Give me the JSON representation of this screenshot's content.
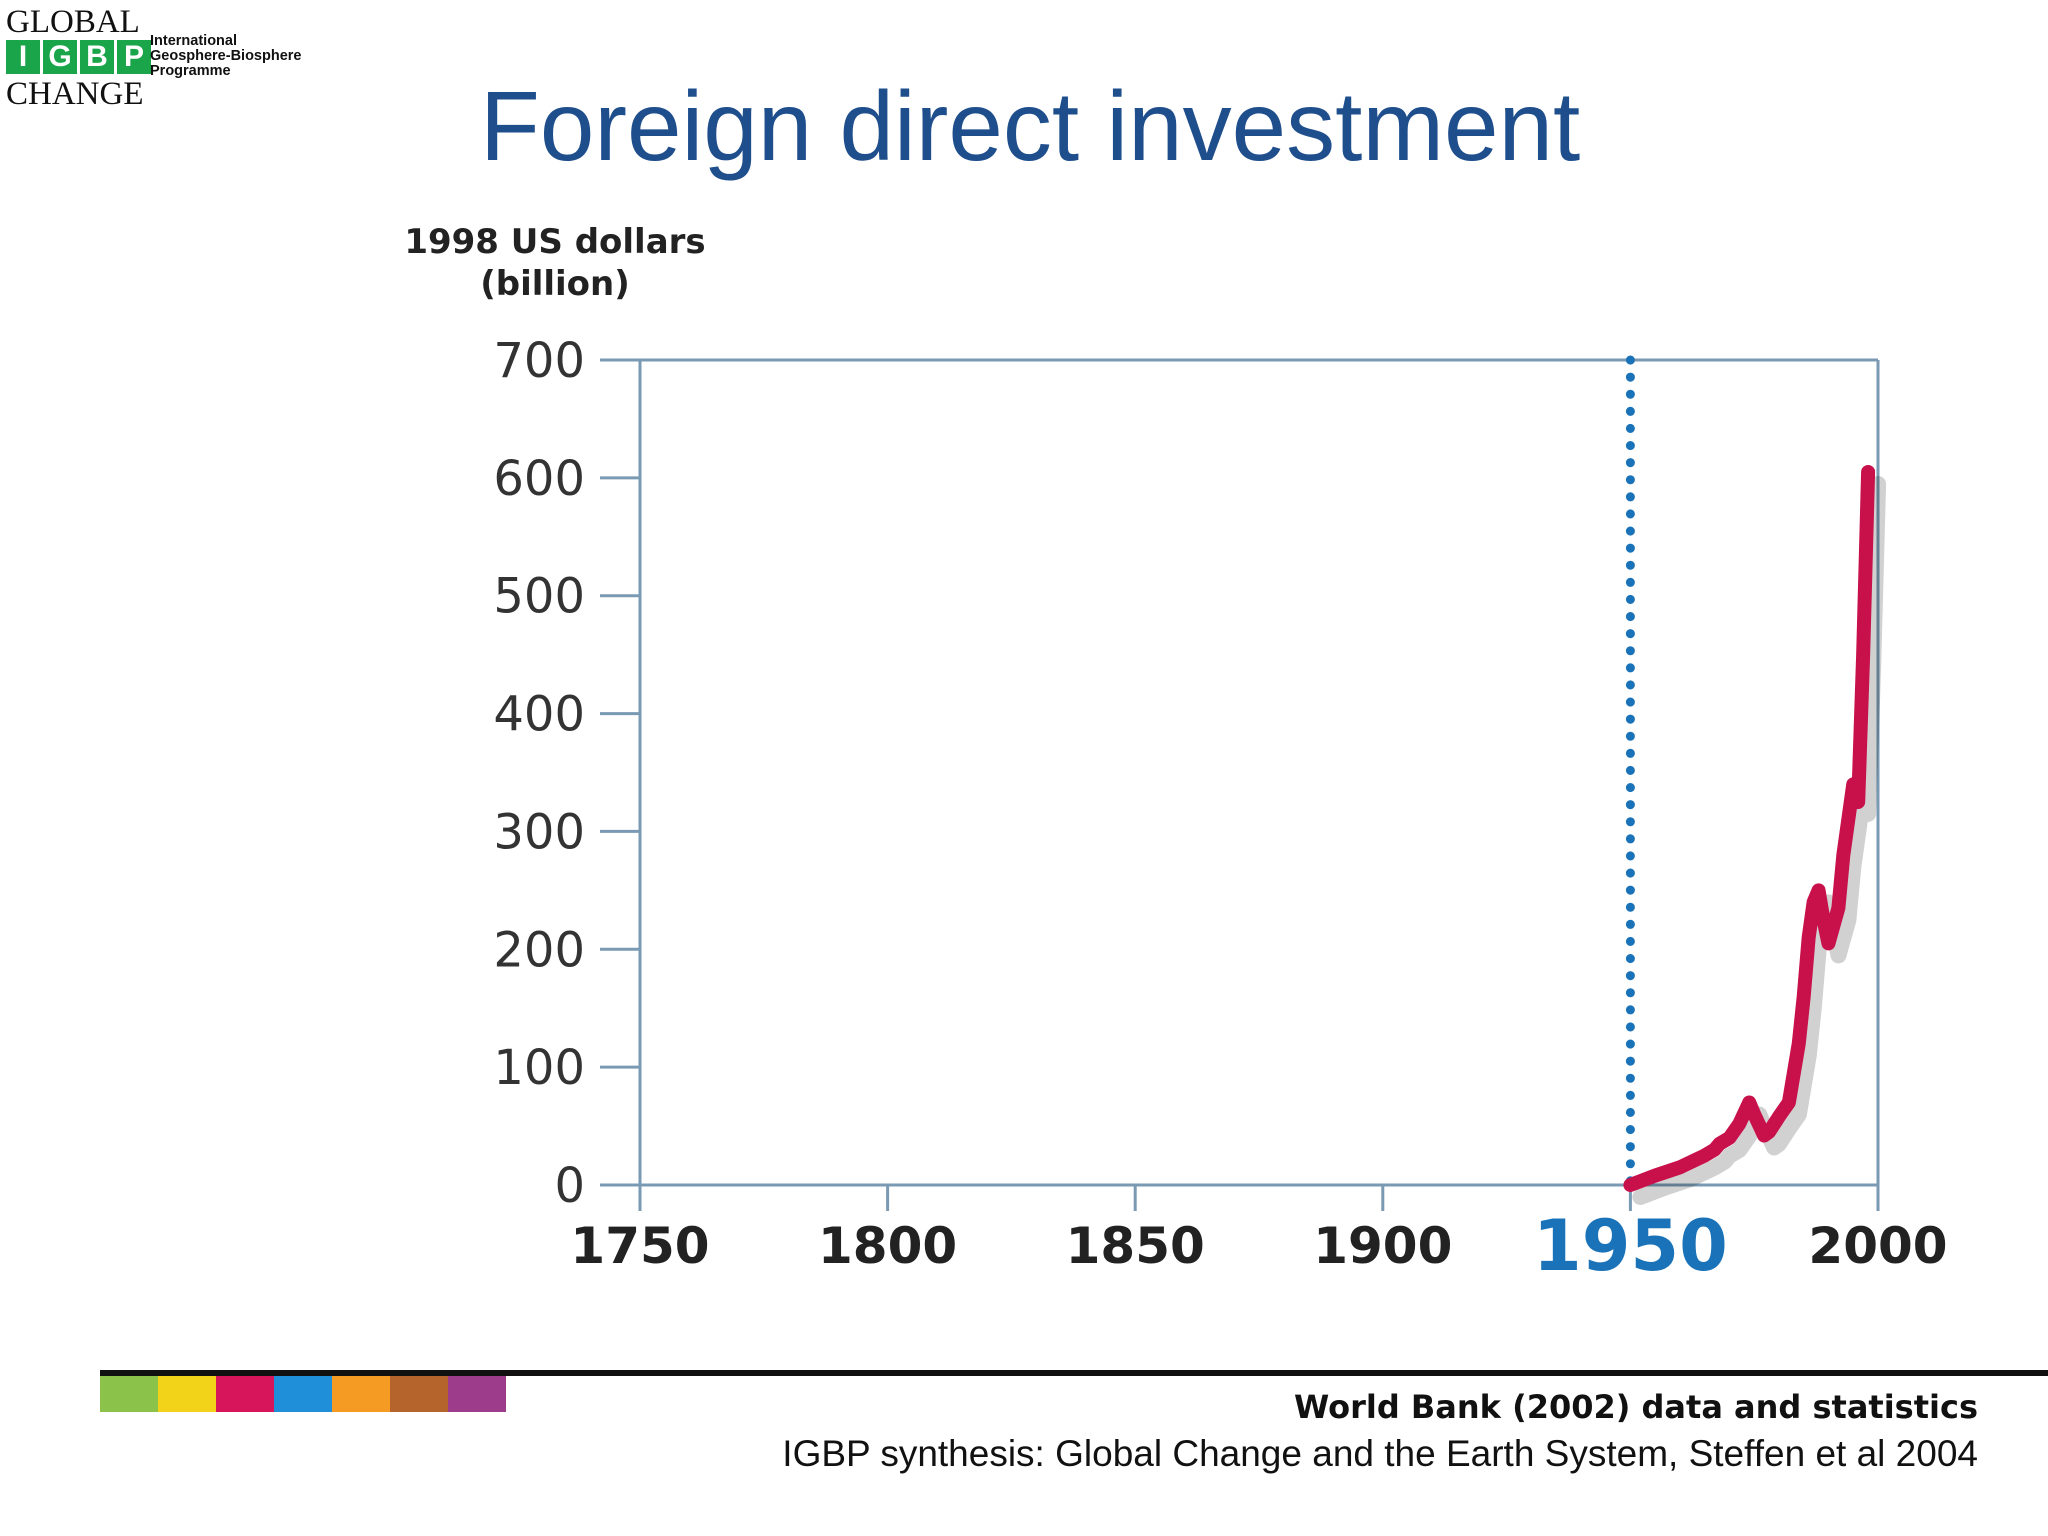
{
  "logo": {
    "global": "GLOBAL",
    "igbp_letters": [
      "I",
      "G",
      "B",
      "P"
    ],
    "change": "CHANGE",
    "subtitle_lines": [
      "International",
      "Geosphere-Biosphere",
      "Programme"
    ],
    "accent_color": "#1aa54a"
  },
  "title": "Foreign direct investment",
  "chart_data": {
    "type": "line",
    "ylabel_lines": [
      "1998 US dollars",
      "(billion)"
    ],
    "xlabel": "",
    "xlim": [
      1750,
      2000
    ],
    "ylim": [
      0,
      700
    ],
    "x_ticks": [
      1750,
      1800,
      1850,
      1900,
      1950,
      2000
    ],
    "y_ticks": [
      0,
      100,
      200,
      300,
      400,
      500,
      600,
      700
    ],
    "highlight_x": 1950,
    "highlight_color": "#1a73b8",
    "grid": false,
    "series": [
      {
        "color": "#c8104a",
        "x": [
          1950,
          1955,
          1960,
          1965,
          1967,
          1968,
          1970,
          1972,
          1974,
          1975,
          1977,
          1978,
          1980,
          1982,
          1984,
          1985,
          1986,
          1987,
          1988,
          1989,
          1990,
          1992,
          1993,
          1995,
          1996,
          1997,
          1998
        ],
        "y": [
          0,
          8,
          15,
          25,
          30,
          35,
          40,
          52,
          70,
          60,
          42,
          45,
          58,
          70,
          120,
          160,
          210,
          240,
          250,
          225,
          205,
          235,
          280,
          340,
          325,
          450,
          605
        ]
      }
    ]
  },
  "footer": {
    "strip_colors": [
      "#8bc34a",
      "#f2d31a",
      "#d6155a",
      "#1e8fd8",
      "#f59a23",
      "#b5652c",
      "#9c3c8a"
    ],
    "source_primary": "World Bank (2002) data and statistics",
    "source_secondary": "IGBP synthesis: Global Change and the Earth System, Steffen et al 2004"
  }
}
